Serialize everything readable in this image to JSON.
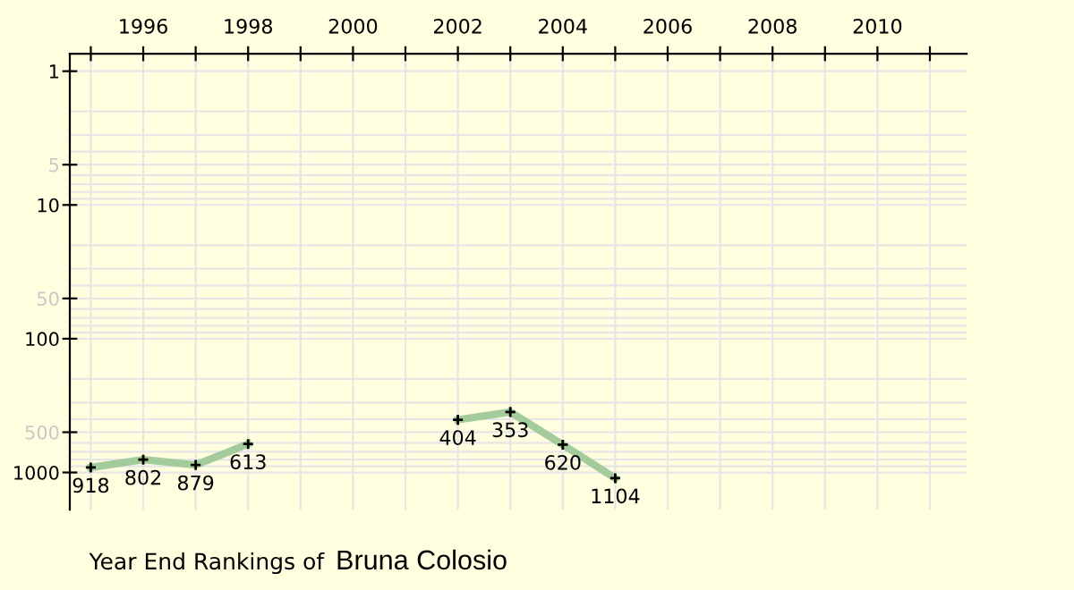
{
  "chart_data": {
    "type": "line",
    "title": "Year End Rankings of",
    "subtitle": "Bruna Colosio",
    "x": [
      1995,
      1996,
      1997,
      1998,
      1999,
      2000,
      2001,
      2002,
      2003,
      2004,
      2005
    ],
    "series": [
      {
        "color": "#a3cb9b",
        "values": [
          918,
          802,
          879,
          613,
          null,
          null,
          null,
          404,
          353,
          620,
          1104
        ]
      }
    ],
    "data_labels": true,
    "marker": "cross",
    "line_style": "solid",
    "log": "y",
    "grid": true,
    "legend": false,
    "xlim": [
      1994.6,
      2011.7
    ],
    "xticks": [
      {
        "value": 1995,
        "label": null
      },
      1996,
      {
        "value": 1997,
        "label": null
      },
      1998,
      {
        "value": 1999,
        "label": null
      },
      2000,
      {
        "value": 2001,
        "label": null
      },
      2002,
      {
        "value": 2003,
        "label": null
      },
      2004,
      {
        "value": 2005,
        "label": null
      },
      2006,
      {
        "value": 2007,
        "label": null
      },
      2008,
      {
        "value": 2009,
        "label": null
      },
      2010,
      {
        "value": 2011,
        "label": null
      }
    ],
    "ylim": [
      1900,
      0.74
    ],
    "yticks": [
      1,
      {
        "value": 2,
        "label": null
      },
      {
        "value": 3,
        "label": null
      },
      {
        "value": 4,
        "label": null
      },
      5,
      {
        "value": 6,
        "label": null
      },
      {
        "value": 7,
        "label": null
      },
      {
        "value": 8,
        "label": null
      },
      {
        "value": 9,
        "label": null
      },
      10,
      {
        "value": 20,
        "label": null
      },
      {
        "value": 30,
        "label": null
      },
      {
        "value": 40,
        "label": null
      },
      50,
      {
        "value": 60,
        "label": null
      },
      {
        "value": 70,
        "label": null
      },
      {
        "value": 80,
        "label": null
      },
      {
        "value": 90,
        "label": null
      },
      100,
      {
        "value": 200,
        "label": null
      },
      {
        "value": 300,
        "label": null
      },
      {
        "value": 400,
        "label": null
      },
      500,
      {
        "value": 600,
        "label": null
      },
      {
        "value": 700,
        "label": null
      },
      {
        "value": 800,
        "label": null
      },
      {
        "value": 900,
        "label": null
      },
      1000
    ]
  }
}
